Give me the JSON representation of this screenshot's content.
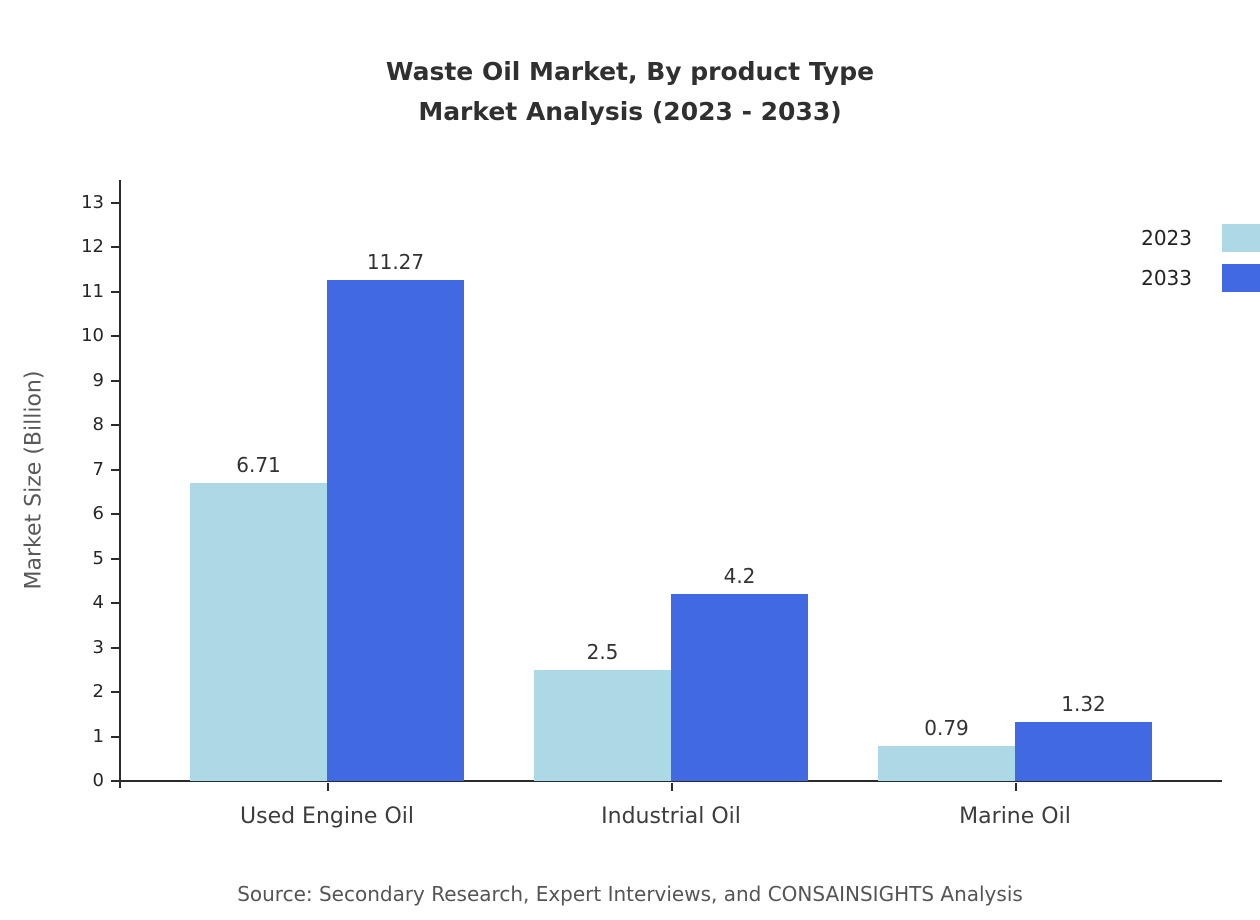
{
  "title": {
    "line1": "Waste Oil Market, By product Type",
    "line2": "Market Analysis (2023 - 2033)"
  },
  "source": {
    "text": "Source: Secondary Research, Expert Interviews, and CONSAINSIGHTS Analysis"
  },
  "chart_data": {
    "type": "bar",
    "title": "Waste Oil Market, By product Type — Market Analysis (2023 - 2033)",
    "categories": [
      "Used Engine Oil",
      "Industrial Oil",
      "Marine Oil"
    ],
    "series": [
      {
        "name": "2023",
        "color": "#ADD8E6",
        "values": [
          6.71,
          2.5,
          0.79
        ]
      },
      {
        "name": "2033",
        "color": "#4169E1",
        "values": [
          11.27,
          4.2,
          1.32
        ]
      }
    ],
    "xlabel": "",
    "ylabel": "Market Size (Billion)",
    "ylim": [
      0,
      13
    ],
    "yticks": [
      0,
      1,
      2,
      3,
      4,
      5,
      6,
      7,
      8,
      9,
      10,
      11,
      12,
      13
    ],
    "grid": false,
    "legend_position": "top-right"
  }
}
